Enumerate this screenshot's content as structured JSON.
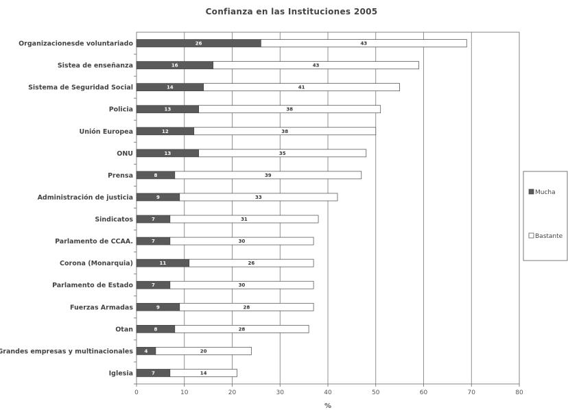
{
  "chart_data": {
    "type": "bar",
    "orientation": "horizontal",
    "stacked": true,
    "title": "Confianza en las Instituciones 2005",
    "xlabel": "%",
    "xlim": [
      0,
      80
    ],
    "xticks": [
      0,
      10,
      20,
      30,
      40,
      50,
      60,
      70,
      80
    ],
    "grid": true,
    "legend_position": "right",
    "categories": [
      "Organizacionesde voluntariado",
      "Sistea de enseñanza",
      "Sistema de Seguridad Social",
      "Policia",
      "Unión Europea",
      "ONU",
      "Prensa",
      "Administración de justicia",
      "Sindicatos",
      "Parlamento de CCAA.",
      "Corona (Monarquia)",
      "Parlamento de Estado",
      "Fuerzas Armadas",
      "Otan",
      "Grandes empresas y multinacionales",
      "Iglesia"
    ],
    "series": [
      {
        "name": "Mucha",
        "color": "#5a5a5a",
        "values": [
          26,
          16,
          14,
          13,
          12,
          13,
          8,
          9,
          7,
          7,
          11,
          7,
          9,
          8,
          4,
          7
        ]
      },
      {
        "name": "Bastante",
        "color": "#ffffff",
        "values": [
          43,
          43,
          41,
          38,
          38,
          35,
          39,
          33,
          31,
          30,
          26,
          30,
          28,
          28,
          20,
          14
        ]
      }
    ]
  }
}
